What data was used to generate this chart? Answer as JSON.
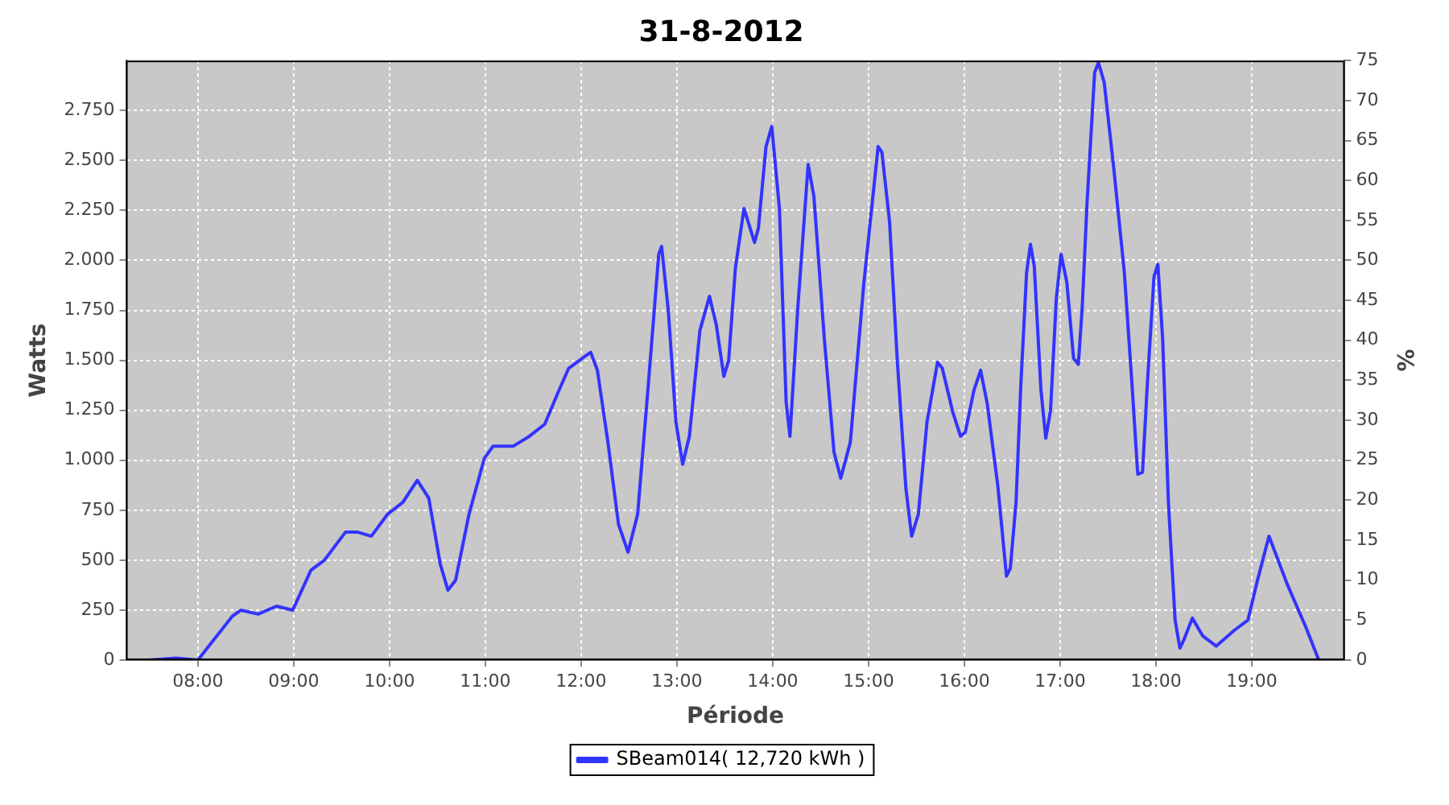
{
  "chart_data": {
    "type": "line",
    "title": "31-8-2012",
    "xlabel": "Période",
    "ylabel": "Watts",
    "y2label": "%",
    "xlim": [
      7.25,
      19.97
    ],
    "xticks": [
      {
        "value": 8,
        "label": "08:00"
      },
      {
        "value": 9,
        "label": "09:00"
      },
      {
        "value": 10,
        "label": "10:00"
      },
      {
        "value": 11,
        "label": "11:00"
      },
      {
        "value": 12,
        "label": "12:00"
      },
      {
        "value": 13,
        "label": "13:00"
      },
      {
        "value": 14,
        "label": "14:00"
      },
      {
        "value": 15,
        "label": "15:00"
      },
      {
        "value": 16,
        "label": "16:00"
      },
      {
        "value": 17,
        "label": "17:00"
      },
      {
        "value": 18,
        "label": "18:00"
      },
      {
        "value": 19,
        "label": "19:00"
      }
    ],
    "ylim": [
      0,
      3000
    ],
    "yticks": [
      0,
      250,
      500,
      750,
      {
        "value": 1000,
        "label": "1.000"
      },
      {
        "value": 1250,
        "label": "1.250"
      },
      {
        "value": 1500,
        "label": "1.500"
      },
      {
        "value": 1750,
        "label": "1.750"
      },
      {
        "value": 2000,
        "label": "2.000"
      },
      {
        "value": 2250,
        "label": "2.250"
      },
      {
        "value": 2500,
        "label": "2.500"
      },
      {
        "value": 2750,
        "label": "2.750"
      }
    ],
    "y2lim": [
      0,
      75
    ],
    "y2ticks": [
      0,
      5,
      10,
      15,
      20,
      25,
      30,
      35,
      40,
      45,
      50,
      55,
      60,
      65,
      70,
      75
    ],
    "grid": true,
    "legend": "bottom",
    "marker": "none",
    "line_style": "solid",
    "series": [
      {
        "name": "SBeam014( 12,720 kWh )",
        "color": "#3333ff",
        "x": [
          7.49,
          7.77,
          8.0,
          8.36,
          8.45,
          8.63,
          8.82,
          8.99,
          9.18,
          9.32,
          9.54,
          9.67,
          9.81,
          9.98,
          10.14,
          10.29,
          10.41,
          10.53,
          10.61,
          10.69,
          10.83,
          10.99,
          11.08,
          11.29,
          11.46,
          11.62,
          11.76,
          11.87,
          12.04,
          12.1,
          12.17,
          12.28,
          12.39,
          12.49,
          12.59,
          12.7,
          12.81,
          12.84,
          12.91,
          12.99,
          13.06,
          13.13,
          13.24,
          13.34,
          13.41,
          13.49,
          13.54,
          13.61,
          13.7,
          13.81,
          13.85,
          13.93,
          13.99,
          14.07,
          14.14,
          14.18,
          14.26,
          14.37,
          14.43,
          14.54,
          14.64,
          14.71,
          14.81,
          14.95,
          15.1,
          15.14,
          15.22,
          15.3,
          15.39,
          15.45,
          15.52,
          15.61,
          15.72,
          15.77,
          15.88,
          15.96,
          16.01,
          16.1,
          16.17,
          16.24,
          16.35,
          16.44,
          16.48,
          16.54,
          16.59,
          16.65,
          16.69,
          16.73,
          16.8,
          16.85,
          16.9,
          16.96,
          17.01,
          17.07,
          17.14,
          17.19,
          17.23,
          17.28,
          17.36,
          17.4,
          17.46,
          17.56,
          17.67,
          17.75,
          17.81,
          17.86,
          17.91,
          17.98,
          18.02,
          18.07,
          18.13,
          18.2,
          18.25,
          18.29,
          18.38,
          18.49,
          18.63,
          18.82,
          18.96,
          19.06,
          19.18,
          19.37,
          19.56,
          19.7
        ],
        "values": [
          0,
          10,
          0,
          220,
          250,
          230,
          270,
          250,
          450,
          500,
          640,
          640,
          620,
          730,
          790,
          900,
          810,
          480,
          350,
          400,
          730,
          1010,
          1070,
          1070,
          1120,
          1180,
          1340,
          1460,
          1520,
          1540,
          1450,
          1090,
          680,
          540,
          730,
          1370,
          2030,
          2070,
          1750,
          1190,
          980,
          1120,
          1650,
          1820,
          1680,
          1420,
          1500,
          1960,
          2260,
          2090,
          2160,
          2570,
          2670,
          2260,
          1290,
          1120,
          1750,
          2480,
          2320,
          1600,
          1040,
          910,
          1090,
          1880,
          2570,
          2540,
          2190,
          1500,
          860,
          620,
          730,
          1190,
          1490,
          1460,
          1240,
          1120,
          1140,
          1350,
          1450,
          1280,
          870,
          420,
          460,
          790,
          1380,
          1940,
          2080,
          1970,
          1350,
          1110,
          1250,
          1810,
          2030,
          1890,
          1510,
          1480,
          1760,
          2280,
          2940,
          2990,
          2890,
          2460,
          1940,
          1380,
          930,
          940,
          1380,
          1920,
          1980,
          1610,
          790,
          200,
          60,
          100,
          210,
          120,
          70,
          150,
          200,
          400,
          620,
          380,
          170,
          0
        ]
      }
    ]
  }
}
